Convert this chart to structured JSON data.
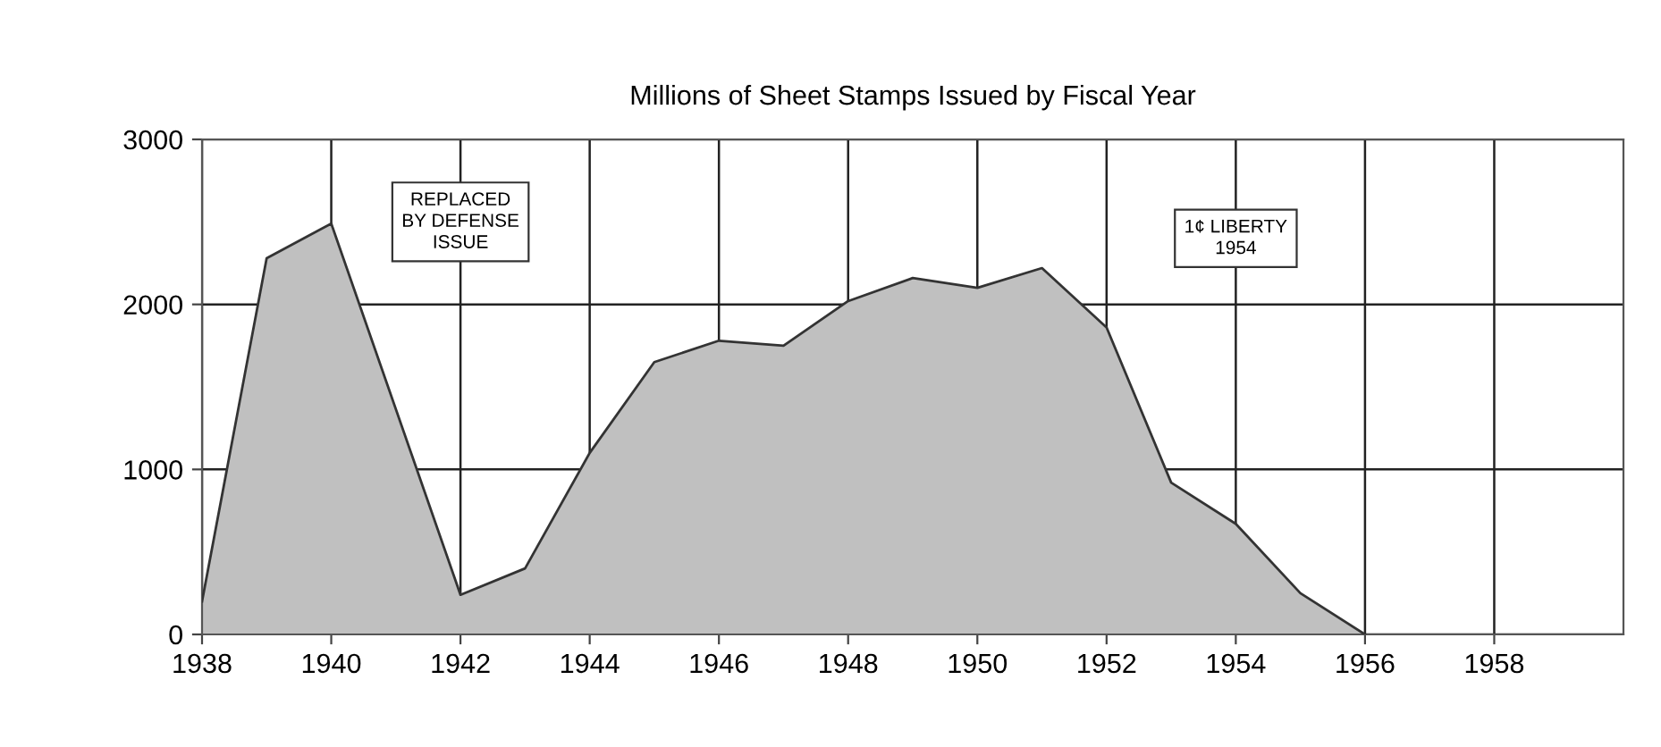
{
  "chart_data": {
    "type": "area",
    "title": "Millions of Sheet Stamps Issued by Fiscal Year",
    "x": [
      1938,
      1939,
      1940,
      1942,
      1943,
      1944,
      1945,
      1946,
      1947,
      1948,
      1949,
      1950,
      1951,
      1952,
      1953,
      1954,
      1955,
      1956
    ],
    "series": [
      {
        "color": "#c0c0c0",
        "values": [
          200,
          2280,
          2490,
          240,
          400,
          1100,
          1650,
          1780,
          1750,
          2020,
          2160,
          2100,
          2220,
          1860,
          920,
          670,
          250,
          0
        ]
      }
    ],
    "xlim": [
      1938,
      1960
    ],
    "xticks": [
      1938,
      1940,
      1942,
      1944,
      1946,
      1948,
      1950,
      1952,
      1954,
      1956,
      1958
    ],
    "ylim": [
      0,
      3000
    ],
    "yticks": [
      0,
      1000,
      2000,
      3000
    ],
    "grid": true,
    "legend": false,
    "annotations": [
      "REPLACED\nBY DEFENSE\nISSUE",
      "1¢ LIBERTY\n1954"
    ]
  }
}
